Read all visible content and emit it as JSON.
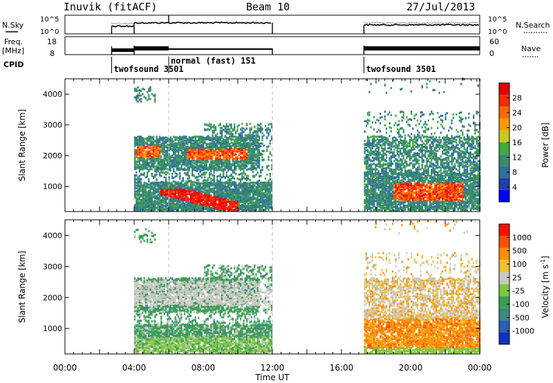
{
  "header": {
    "station": "Inuvik (fitACF)",
    "beam": "Beam 10",
    "date": "27/Jul/2013"
  },
  "top_panels": {
    "nsky_label": "N.Sky",
    "nsky_ticks": [
      "10^5",
      "10^0"
    ],
    "nsearch_label": "N.Search",
    "freq_label_1": "Freq.",
    "freq_label_2": "[MHz]",
    "freq_ticks": [
      "18",
      "8"
    ],
    "nave_label": "Nave",
    "nave_ticks": [
      "60",
      "0"
    ],
    "cpid_label": "CPID"
  },
  "cpid_segments": [
    {
      "name": "twofsound 3501",
      "start_hour": 2.7
    },
    {
      "name": "normal (fast) 151",
      "start_hour": 6.0
    },
    {
      "name": "twofsound 3501",
      "start_hour": 17.3
    }
  ],
  "chart_data": [
    {
      "type": "heatmap",
      "ylabel": "Slant Range [km]",
      "xlabel": "Time UT",
      "x_ticks": [
        "00:00",
        "04:00",
        "08:00",
        "12:00",
        "16:00",
        "20:00",
        "00:00"
      ],
      "x_range_hours": [
        0,
        24
      ],
      "ylim": [
        180,
        4500
      ],
      "y_ticks": [
        1000,
        2000,
        3000,
        4000
      ],
      "colorbar_label": "Power [dB]",
      "colorbar_ticks": [
        "28",
        "24",
        "20",
        "16",
        "12",
        "8",
        "4"
      ],
      "colorbar_colors": [
        "#0000ff",
        "#1f3fb0",
        "#2f6f9f",
        "#3a8a6a",
        "#3faa3f",
        "#c8c820",
        "#ff9900",
        "#ff6a00",
        "#ff2a00",
        "#e00000"
      ],
      "data_blocks_hours": [
        [
          4.0,
          12.0
        ],
        [
          17.3,
          24.0
        ]
      ]
    },
    {
      "type": "heatmap",
      "ylabel": "Slant Range [km]",
      "xlabel": "Time UT",
      "x_ticks": [
        "00:00",
        "04:00",
        "08:00",
        "12:00",
        "16:00",
        "20:00",
        "00:00"
      ],
      "x_range_hours": [
        0,
        24
      ],
      "ylim": [
        180,
        4500
      ],
      "y_ticks": [
        1000,
        2000,
        3000,
        4000
      ],
      "colorbar_label": "Velocity [m s",
      "colorbar_label_sup": "-1",
      "colorbar_label_end": "]",
      "colorbar_ticks": [
        "1000",
        "500",
        "100",
        "25",
        "-25",
        "-100",
        "-500",
        "-1000"
      ],
      "colorbar_colors": [
        "#1030c0",
        "#2a60b0",
        "#3a8a80",
        "#3aa050",
        "#80c840",
        "#c8c8c0",
        "#f0c030",
        "#ff9000",
        "#ff5000",
        "#ff1000"
      ],
      "data_blocks_hours": [
        [
          4.0,
          12.0
        ],
        [
          17.3,
          24.0
        ]
      ]
    }
  ]
}
